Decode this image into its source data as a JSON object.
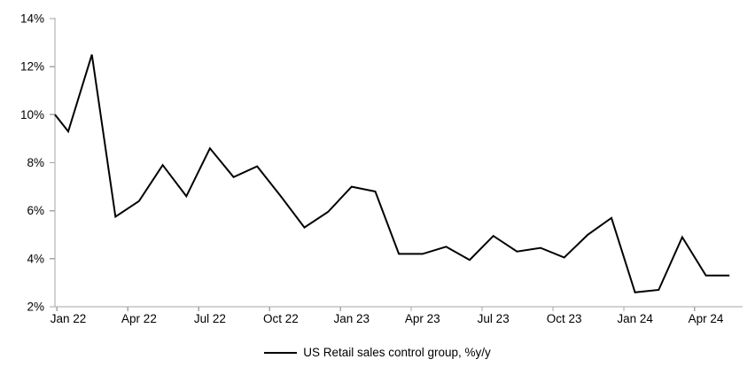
{
  "chart_data": {
    "type": "line",
    "title": "",
    "grid": false,
    "legend_position": "bottom-center",
    "x_axis": {
      "tick_labels": [
        "Jan 22",
        "Apr 22",
        "Jul 22",
        "Oct 22",
        "Jan 23",
        "Apr 23",
        "Jul 23",
        "Oct 23",
        "Jan 24",
        "Apr 24"
      ],
      "tick_interval_months": 3,
      "layout": "categories-between-ticks"
    },
    "y_axis": {
      "tick_labels": [
        "2%",
        "4%",
        "6%",
        "8%",
        "10%",
        "12%",
        "14%"
      ],
      "min": 2,
      "max": 14,
      "tick_step": 2,
      "unit": "%"
    },
    "series": [
      {
        "name": "US Retail sales control group, %y/y",
        "color": "#000000",
        "line_enters_plot_at_left_axis_value": 10.0,
        "x": [
          "Jan 22",
          "Feb 22",
          "Mar 22",
          "Apr 22",
          "May 22",
          "Jun 22",
          "Jul 22",
          "Aug 22",
          "Sep 22",
          "Oct 22",
          "Nov 22",
          "Dec 22",
          "Jan 23",
          "Feb 23",
          "Mar 23",
          "Apr 23",
          "May 23",
          "Jun 23",
          "Jul 23",
          "Aug 23",
          "Sep 23",
          "Oct 23",
          "Nov 23",
          "Dec 23",
          "Jan 24",
          "Feb 24",
          "Mar 24",
          "Apr 24",
          "May 24"
        ],
        "values": [
          9.3,
          12.5,
          5.75,
          6.4,
          7.9,
          6.6,
          8.6,
          7.4,
          7.85,
          6.6,
          5.3,
          5.95,
          7.0,
          6.8,
          4.2,
          4.2,
          4.5,
          3.95,
          4.95,
          4.3,
          4.45,
          4.05,
          5.0,
          5.7,
          2.6,
          2.7,
          4.9,
          3.3,
          3.3
        ]
      }
    ]
  },
  "legend": {
    "label": "US Retail sales control group, %y/y"
  },
  "colors": {
    "line": "#000000",
    "axis": "#a6a6a6",
    "text": "#000000",
    "background": "#ffffff"
  }
}
